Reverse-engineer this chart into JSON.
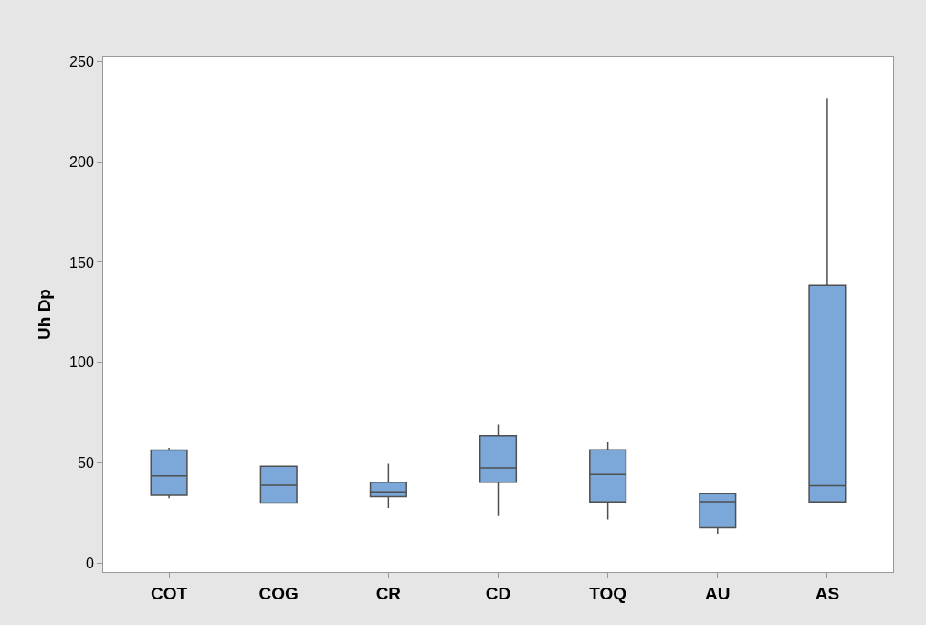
{
  "chart_data": {
    "type": "box",
    "ylabel": "Uh Dp",
    "categories": [
      "COT",
      "COG",
      "CR",
      "CD",
      "TOQ",
      "AU",
      "AS"
    ],
    "color": "#7ba7d9",
    "boxes": [
      {
        "low": 32.4,
        "q1": 33.9,
        "median": 43.5,
        "q3": 56.4,
        "high": 57.5
      },
      {
        "low": 30.0,
        "q1": 30.0,
        "median": 38.8,
        "q3": 48.3,
        "high": 48.3
      },
      {
        "low": 27.5,
        "q1": 33.2,
        "median": 35.5,
        "q3": 40.3,
        "high": 49.5
      },
      {
        "low": 23.5,
        "q1": 40.3,
        "median": 47.5,
        "q3": 63.5,
        "high": 69.1
      },
      {
        "low": 21.8,
        "q1": 30.6,
        "median": 44.2,
        "q3": 56.5,
        "high": 60.3
      },
      {
        "low": 14.7,
        "q1": 17.7,
        "median": 30.7,
        "q3": 34.7,
        "high": 34.7
      },
      {
        "low": 29.8,
        "q1": 30.6,
        "median": 38.6,
        "q3": 138.5,
        "high": 231.8
      }
    ],
    "ylim": [
      -4.4,
      252.4
    ],
    "yticks": [
      0,
      50,
      100,
      150,
      200,
      250
    ]
  }
}
